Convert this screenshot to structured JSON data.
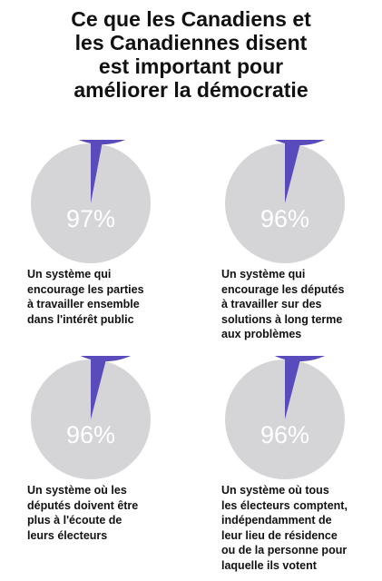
{
  "title_lines": [
    "Ce que les Canadiens et",
    "les Canadiennes disent",
    "est important pour",
    "améliorer la démocratie"
  ],
  "colors": {
    "slice": "#5a4bbd",
    "remainder": "#d5d5d8"
  },
  "chart_data": [
    {
      "type": "pie",
      "value": 97,
      "label": "97%",
      "caption_lines": [
        "Un système qui",
        "encourage les parties",
        "à travailler ensemble",
        "dans l'intérêt public"
      ]
    },
    {
      "type": "pie",
      "value": 96,
      "label": "96%",
      "caption_lines": [
        "Un système qui",
        "encourage les députés",
        "à travailler sur des",
        "solutions à long terme",
        "aux problèmes"
      ]
    },
    {
      "type": "pie",
      "value": 96,
      "label": "96%",
      "caption_lines": [
        "Un système où les",
        "députés doivent être",
        "plus à l'écoute de",
        "leurs électeurs"
      ]
    },
    {
      "type": "pie",
      "value": 96,
      "label": "96%",
      "caption_lines": [
        "Un système où tous",
        "les électeurs comptent,",
        "indépendamment de",
        "leur lieu de résidence",
        "ou de la personne pour",
        "laquelle ils votent"
      ]
    }
  ]
}
